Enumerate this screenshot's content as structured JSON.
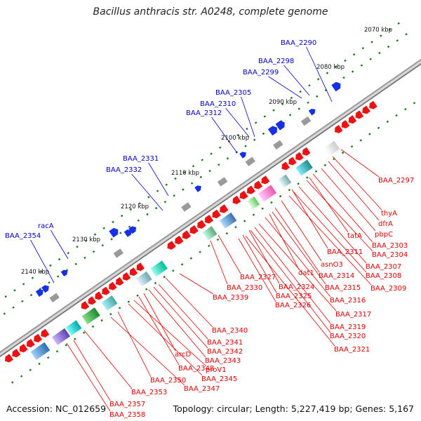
{
  "title": "Bacillus anthracis str. A0248, complete genome",
  "footer": {
    "accession": "Accession: NC_012659",
    "stats": "Topology: circular; Length: 5,227,419 bp; Genes: 5,167"
  },
  "colors": {
    "forward_label": "#0000cc",
    "reverse_label": "#dd0000",
    "forward_gene": "#1530e8",
    "reverse_gene": "#ee1111",
    "backbone": "#888888",
    "kbp_dots": "#2a8a2a"
  },
  "kbp_labels": [
    "2070 kbp",
    "2080 kbp",
    "2090 kbp",
    "2100 kbp",
    "2110 kbp",
    "2120 kbp",
    "2130 kbp",
    "2140 kbp"
  ],
  "forward_genes": [
    "BAA_2290",
    "BAA_2298",
    "BAA_2299",
    "BAA_2305",
    "BAA_2310",
    "BAA_2312",
    "BAA_2331",
    "BAA_2332",
    "racA",
    "BAA_2354"
  ],
  "reverse_genes": [
    "BAA_2297",
    "thyA",
    "dfrA",
    "pbpC",
    "tatA",
    "BAA_2303",
    "BAA_2304",
    "BAA_2311",
    "asnO3",
    "BAA_2307",
    "BAA_2308",
    "dat1",
    "BAA_2314",
    "BAA_2309",
    "BAA_2327",
    "BAA_2315",
    "BAA_2324",
    "BAA_2330",
    "BAA_2325",
    "BAA_2316",
    "BAA_2326",
    "BAA_2339",
    "BAA_2317",
    "BAA_2319",
    "BAA_2340",
    "BAA_2320",
    "BAA_2341",
    "BAA_2321",
    "BAA_2342",
    "BAA_2343",
    "arcD",
    "BAA_2348",
    "proV1",
    "BAA_2345",
    "BAA_2350",
    "BAA_2347",
    "BAA_2353",
    "BAA_2357",
    "BAA_2358"
  ]
}
